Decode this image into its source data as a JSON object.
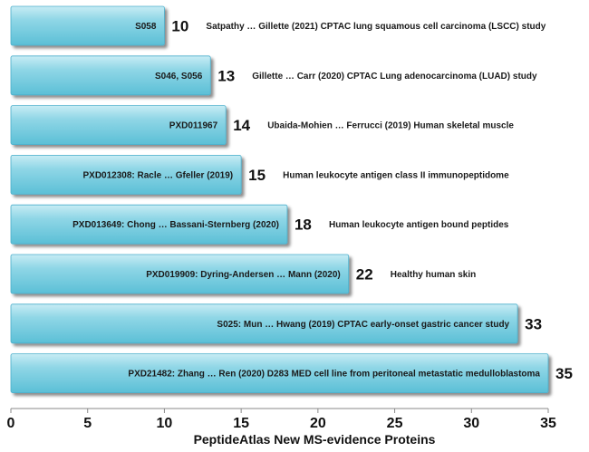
{
  "chart_data": {
    "type": "bar",
    "orientation": "horizontal",
    "xlabel": "PeptideAtlas New MS-evidence Proteins",
    "xlim": [
      0,
      35
    ],
    "xticks": [
      0,
      5,
      10,
      15,
      20,
      25,
      30,
      35
    ],
    "grid": false,
    "bar_color": "#6cc8dc",
    "bars": [
      {
        "label": "S058",
        "value": 10,
        "description": "Satpathy … Gillette (2021) CPTAC lung squamous cell carcinoma (LSCC) study"
      },
      {
        "label": "S046, S056",
        "value": 13,
        "description": "Gillette … Carr (2020) CPTAC Lung adenocarcinoma (LUAD) study"
      },
      {
        "label": "PXD011967",
        "value": 14,
        "description": "Ubaida-Mohien … Ferrucci (2019) Human skeletal muscle"
      },
      {
        "label": "PXD012308: Racle … Gfeller (2019)",
        "value": 15,
        "description": "Human leukocyte antigen class II immunopeptidome"
      },
      {
        "label": "PXD013649: Chong … Bassani-Sternberg (2020)",
        "value": 18,
        "description": "Human leukocyte antigen bound peptides"
      },
      {
        "label": "PXD019909: Dyring-Andersen … Mann (2020)",
        "value": 22,
        "description": "Healthy human skin"
      },
      {
        "label": "S025: Mun … Hwang (2019) CPTAC early-onset gastric cancer study",
        "value": 33,
        "description": ""
      },
      {
        "label": "PXD21482: Zhang … Ren (2020) D283 MED cell line from peritoneal metastatic medulloblastoma",
        "value": 35,
        "description": ""
      }
    ]
  }
}
